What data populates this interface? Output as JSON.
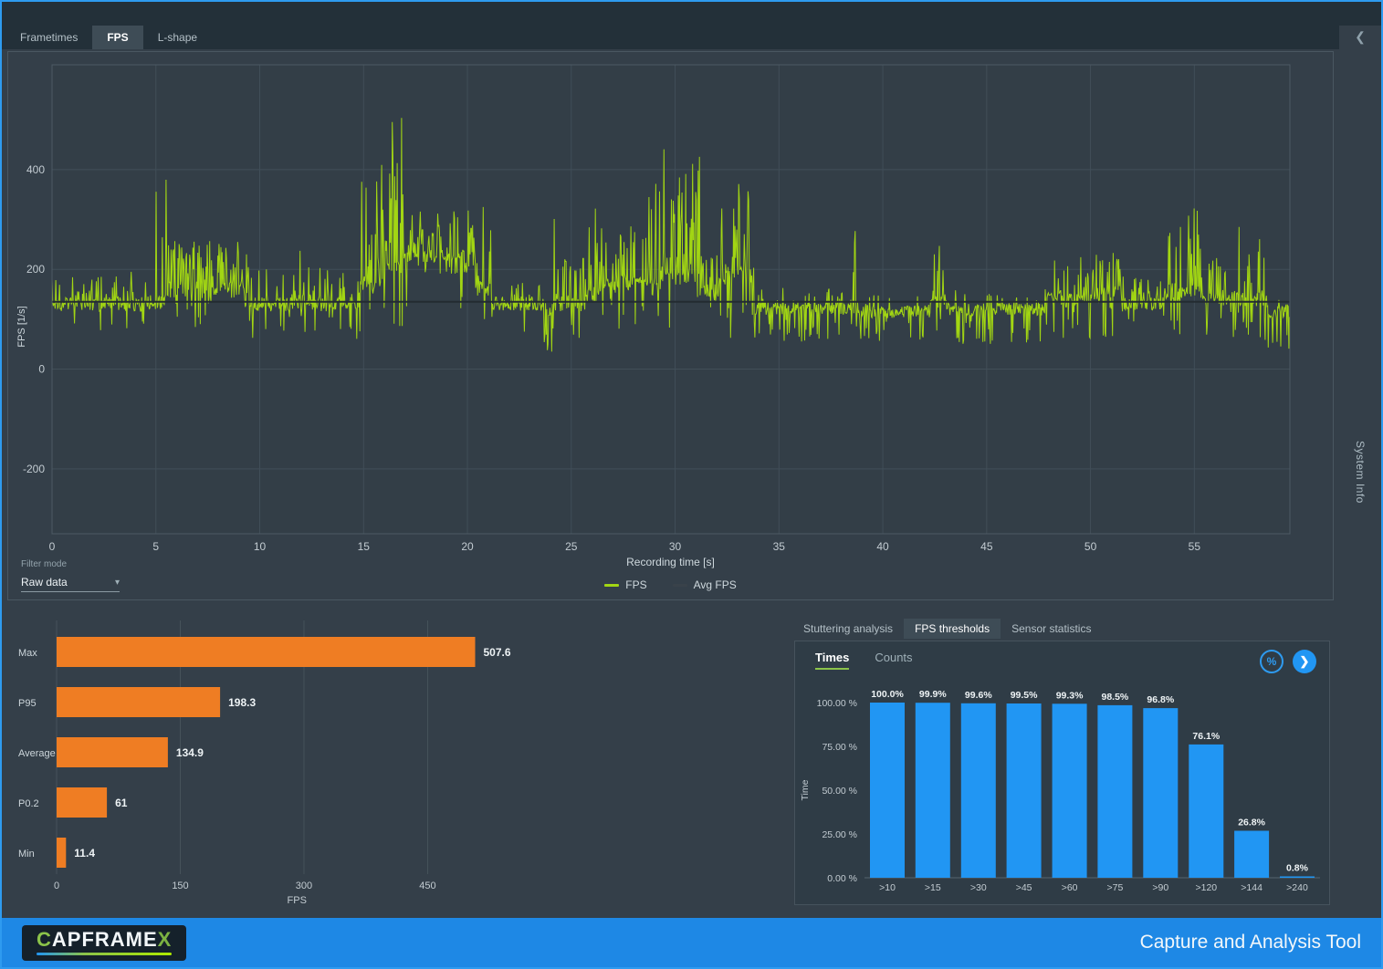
{
  "icons": {
    "chevron_down": "▾",
    "collapse_left": "❮",
    "expand_right": "❯",
    "percent": "%"
  },
  "colors": {
    "accent_blue": "#2196f3",
    "fps_green": "#a2d613",
    "avg_line": "#232b31",
    "avg_swatch": "#39424a",
    "bar_orange": "#ef7d23",
    "bar_blue": "#2196f3",
    "grid": "#414e58",
    "axis_text": "#c3ccd2",
    "plot_bg": "#333e47",
    "plot_border": "#4d5a64",
    "underline_green": "#8bc34a"
  },
  "tabs": {
    "items": [
      {
        "label": "Frametimes",
        "active": false
      },
      {
        "label": "FPS",
        "active": true
      },
      {
        "label": "L-shape",
        "active": false
      }
    ]
  },
  "sidebar": {
    "label": "System Info"
  },
  "filter": {
    "label": "Filter mode",
    "value": "Raw data"
  },
  "legend": [
    {
      "label": "FPS",
      "color": "#a2d613"
    },
    {
      "label": "Avg FPS",
      "color": "#39424a"
    }
  ],
  "analysis_tabs": [
    {
      "label": "Stuttering analysis",
      "active": false
    },
    {
      "label": "FPS thresholds",
      "active": true
    },
    {
      "label": "Sensor statistics",
      "active": false
    }
  ],
  "thresholds_panel": {
    "tabs": [
      {
        "label": "Times",
        "active": true
      },
      {
        "label": "Counts",
        "active": false
      }
    ]
  },
  "footer": {
    "logo": {
      "c": "C",
      "mid": "APFRAME",
      "x": "X"
    },
    "title": "Capture and Analysis Tool"
  },
  "chart_data": [
    {
      "type": "line",
      "title": "FPS over recording time",
      "xlabel": "Recording time [s]",
      "ylabel": "FPS [1/s]",
      "x_range": [
        0,
        59.6
      ],
      "y_range": [
        -330,
        610
      ],
      "x_ticks": [
        0,
        5,
        10,
        15,
        20,
        25,
        30,
        35,
        40,
        45,
        50,
        55
      ],
      "y_ticks": [
        400,
        200,
        0,
        -200
      ],
      "avg": 134.9,
      "max": 507.6,
      "min": 11.4,
      "seed": 1337,
      "step": 0.03,
      "series_name": "FPS",
      "avg_series_name": "Avg FPS",
      "envelope": [
        {
          "t": [
            0,
            4.5
          ],
          "base": 130,
          "up": 195,
          "down": 60,
          "spike_p": 0.28,
          "dip_p": 0.07
        },
        {
          "t": [
            4.5,
            5.6
          ],
          "base": 135,
          "up": 385,
          "down": 70,
          "spike_p": 0.12,
          "dip_p": 0.06
        },
        {
          "t": [
            5.6,
            9.5
          ],
          "base": 160,
          "up": 260,
          "down": 80,
          "spike_p": 0.45,
          "dip_p": 0.08
        },
        {
          "t": [
            9.5,
            11.4
          ],
          "base": 130,
          "up": 205,
          "down": 60,
          "spike_p": 0.3,
          "dip_p": 0.07
        },
        {
          "t": [
            11.4,
            12.0
          ],
          "base": 135,
          "up": 255,
          "down": 60,
          "spike_p": 0.22,
          "dip_p": 0.06
        },
        {
          "t": [
            12.0,
            14.8
          ],
          "base": 130,
          "up": 205,
          "down": 55,
          "spike_p": 0.3,
          "dip_p": 0.09
        },
        {
          "t": [
            14.8,
            16.1
          ],
          "base": 170,
          "up": 440,
          "down": 70,
          "spike_p": 0.4,
          "dip_p": 0.06
        },
        {
          "t": [
            16.1,
            16.9
          ],
          "base": 200,
          "up": 510,
          "down": 80,
          "spike_p": 0.5,
          "dip_p": 0.05
        },
        {
          "t": [
            16.9,
            20.4
          ],
          "base": 215,
          "up": 320,
          "down": 90,
          "spike_p": 0.55,
          "dip_p": 0.08
        },
        {
          "t": [
            20.4,
            21.2
          ],
          "base": 160,
          "up": 360,
          "down": 70,
          "spike_p": 0.3,
          "dip_p": 0.07
        },
        {
          "t": [
            21.2,
            23.7
          ],
          "base": 130,
          "up": 185,
          "down": 60,
          "spike_p": 0.2,
          "dip_p": 0.09
        },
        {
          "t": [
            23.7,
            24.3
          ],
          "base": 120,
          "up": 345,
          "down": 28,
          "spike_p": 0.15,
          "dip_p": 0.3
        },
        {
          "t": [
            24.3,
            25.7
          ],
          "base": 130,
          "up": 225,
          "down": 60,
          "spike_p": 0.3,
          "dip_p": 0.1
        },
        {
          "t": [
            25.7,
            26.4
          ],
          "base": 150,
          "up": 405,
          "down": 70,
          "spike_p": 0.35,
          "dip_p": 0.07
        },
        {
          "t": [
            26.4,
            28.5
          ],
          "base": 170,
          "up": 300,
          "down": 80,
          "spike_p": 0.5,
          "dip_p": 0.08
        },
        {
          "t": [
            28.5,
            29.3
          ],
          "base": 165,
          "up": 375,
          "down": 70,
          "spike_p": 0.4,
          "dip_p": 0.06
        },
        {
          "t": [
            29.3,
            31.2
          ],
          "base": 190,
          "up": 445,
          "down": 80,
          "spike_p": 0.5,
          "dip_p": 0.07
        },
        {
          "t": [
            31.2,
            32.2
          ],
          "base": 150,
          "up": 255,
          "down": 70,
          "spike_p": 0.4,
          "dip_p": 0.07
        },
        {
          "t": [
            32.2,
            33.8
          ],
          "base": 190,
          "up": 395,
          "down": 60,
          "spike_p": 0.5,
          "dip_p": 0.1
        },
        {
          "t": [
            33.8,
            38.3
          ],
          "base": 122,
          "up": 165,
          "down": 55,
          "spike_p": 0.14,
          "dip_p": 0.16
        },
        {
          "t": [
            38.3,
            38.8
          ],
          "base": 125,
          "up": 305,
          "down": 60,
          "spike_p": 0.18,
          "dip_p": 0.08
        },
        {
          "t": [
            38.8,
            42.3
          ],
          "base": 115,
          "up": 150,
          "down": 55,
          "spike_p": 0.12,
          "dip_p": 0.16
        },
        {
          "t": [
            42.3,
            43.2
          ],
          "base": 135,
          "up": 265,
          "down": 60,
          "spike_p": 0.45,
          "dip_p": 0.1
        },
        {
          "t": [
            43.2,
            47.8
          ],
          "base": 120,
          "up": 160,
          "down": 50,
          "spike_p": 0.12,
          "dip_p": 0.16
        },
        {
          "t": [
            47.8,
            49.5
          ],
          "base": 140,
          "up": 220,
          "down": 60,
          "spike_p": 0.3,
          "dip_p": 0.1
        },
        {
          "t": [
            49.5,
            51.5
          ],
          "base": 150,
          "up": 245,
          "down": 60,
          "spike_p": 0.35,
          "dip_p": 0.09
        },
        {
          "t": [
            51.5,
            53.5
          ],
          "base": 130,
          "up": 195,
          "down": 60,
          "spike_p": 0.2,
          "dip_p": 0.11
        },
        {
          "t": [
            53.5,
            54.4
          ],
          "base": 150,
          "up": 340,
          "down": 60,
          "spike_p": 0.3,
          "dip_p": 0.08
        },
        {
          "t": [
            54.4,
            55.3
          ],
          "base": 160,
          "up": 400,
          "down": 70,
          "spike_p": 0.4,
          "dip_p": 0.07
        },
        {
          "t": [
            55.3,
            56.5
          ],
          "base": 140,
          "up": 235,
          "down": 60,
          "spike_p": 0.3,
          "dip_p": 0.1
        },
        {
          "t": [
            56.5,
            58.5
          ],
          "base": 142,
          "up": 300,
          "down": 55,
          "spike_p": 0.25,
          "dip_p": 0.13
        },
        {
          "t": [
            58.5,
            59.6
          ],
          "base": 115,
          "up": 150,
          "down": 40,
          "spike_p": 0.1,
          "dip_p": 0.25
        }
      ]
    },
    {
      "type": "bar",
      "orientation": "horizontal",
      "title": "FPS statistics",
      "categories": [
        "Max",
        "P95",
        "Average",
        "P0.2",
        "Min"
      ],
      "values": [
        507.6,
        198.3,
        134.9,
        61,
        11.4
      ],
      "value_labels": [
        "507.6",
        "198.3",
        "134.9",
        "61",
        "11.4"
      ],
      "x_ticks": [
        0,
        150,
        300,
        450
      ],
      "xlabel": "FPS",
      "xlim": [
        0,
        560
      ]
    },
    {
      "type": "bar",
      "title": "FPS thresholds — Times",
      "categories": [
        ">10",
        ">15",
        ">30",
        ">45",
        ">60",
        ">75",
        ">90",
        ">120",
        ">144",
        ">240"
      ],
      "values": [
        100.0,
        99.9,
        99.6,
        99.5,
        99.3,
        98.5,
        96.8,
        76.1,
        26.8,
        0.8
      ],
      "value_labels": [
        "100.0%",
        "99.9%",
        "99.6%",
        "99.5%",
        "99.3%",
        "98.5%",
        "96.8%",
        "76.1%",
        "26.8%",
        "0.8%"
      ],
      "y_ticks": [
        100,
        75,
        50,
        25,
        0
      ],
      "y_tick_labels": [
        "100.00 %",
        "75.00 %",
        "50.00 %",
        "25.00 %",
        "0.00 %"
      ],
      "ylabel": "Time",
      "ylim": [
        0,
        100
      ]
    }
  ]
}
